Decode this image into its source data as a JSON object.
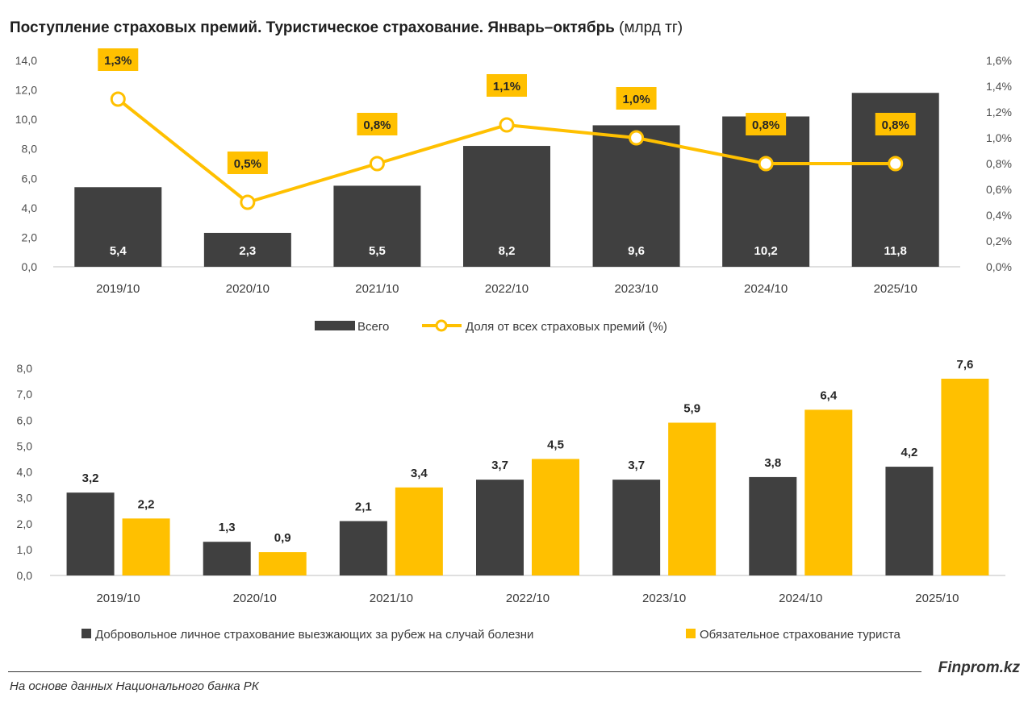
{
  "title": {
    "bold": "Поступление страховых премий. Туристическое страхование. Январь–октябрь",
    "unit": "(млрд тг)"
  },
  "colors": {
    "dark": "#404040",
    "yellow": "#FFC000",
    "label_box": "#FFC000"
  },
  "chart_data": [
    {
      "type": "bar",
      "categories": [
        "2019/10",
        "2020/10",
        "2021/10",
        "2022/10",
        "2023/10",
        "2024/10",
        "2025/10"
      ],
      "series": [
        {
          "name": "Всего",
          "type": "bar",
          "values": [
            5.4,
            2.3,
            5.5,
            8.2,
            9.6,
            10.2,
            11.8
          ],
          "labels": [
            "5,4",
            "2,3",
            "5,5",
            "8,2",
            "9,6",
            "10,2",
            "11,8"
          ]
        },
        {
          "name": "Доля от всех страховых премий (%)",
          "type": "line",
          "axis": "right",
          "values": [
            1.3,
            0.5,
            0.8,
            1.1,
            1.0,
            0.8,
            0.8
          ],
          "labels": [
            "1,3%",
            "0,5%",
            "0,8%",
            "1,1%",
            "1,0%",
            "0,8%",
            "0,8%"
          ]
        }
      ],
      "ylim": [
        0,
        14
      ],
      "y_ticks": [
        "0,0",
        "2,0",
        "4,0",
        "6,0",
        "8,0",
        "10,0",
        "12,0",
        "14,0"
      ],
      "y2lim": [
        0,
        1.6
      ],
      "y2_ticks": [
        "0,0%",
        "0,2%",
        "0,4%",
        "0,6%",
        "0,8%",
        "1,0%",
        "1,2%",
        "1,4%",
        "1,6%"
      ],
      "legend": "bottom"
    },
    {
      "type": "bar",
      "categories": [
        "2019/10",
        "2020/10",
        "2021/10",
        "2022/10",
        "2023/10",
        "2024/10",
        "2025/10"
      ],
      "series": [
        {
          "name": "Добровольное личное страхование выезжающих за рубеж на случай болезни",
          "values": [
            3.2,
            1.3,
            2.1,
            3.7,
            3.7,
            3.8,
            4.2
          ],
          "labels": [
            "3,2",
            "1,3",
            "2,1",
            "3,7",
            "3,7",
            "3,8",
            "4,2"
          ]
        },
        {
          "name": "Обязательное страхование туриста",
          "values": [
            2.2,
            0.9,
            3.4,
            4.5,
            5.9,
            6.4,
            7.6
          ],
          "labels": [
            "2,2",
            "0,9",
            "3,4",
            "4,5",
            "5,9",
            "6,4",
            "7,6"
          ]
        }
      ],
      "ylim": [
        0,
        8
      ],
      "y_ticks": [
        "0,0",
        "1,0",
        "2,0",
        "3,0",
        "4,0",
        "5,0",
        "6,0",
        "7,0",
        "8,0"
      ],
      "legend": "bottom"
    }
  ],
  "footer": {
    "brand": "Finprom.kz",
    "source": "На основе данных Национального банка РК"
  }
}
